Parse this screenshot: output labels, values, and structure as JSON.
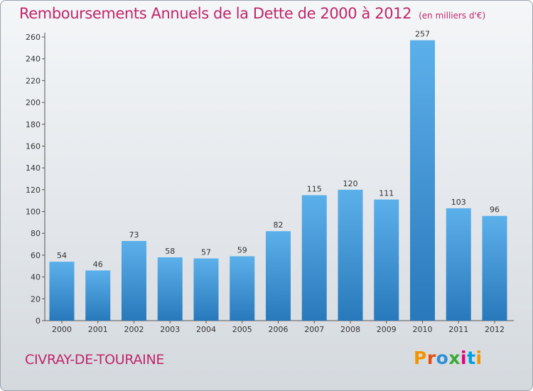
{
  "title": "Remboursements Annuels de la Dette de 2000 à 2012",
  "unit_note": "(en milliers d'€)",
  "commune": "CIVRAY-DE-TOURAINE",
  "logo": {
    "text": "Proxiti",
    "colors": [
      "#f29400",
      "#e84e0f",
      "#2f8fd8",
      "#3aa935",
      "#e6007e",
      "#009fe3"
    ]
  },
  "colors": {
    "title": "#c0266a",
    "bar_light": "#5aaee8",
    "bar_dark": "#2a7fc0"
  },
  "chart_data": {
    "type": "bar",
    "title": "Remboursements Annuels de la Dette de 2000 à 2012",
    "categories": [
      "2000",
      "2001",
      "2002",
      "2003",
      "2004",
      "2005",
      "2006",
      "2007",
      "2008",
      "2009",
      "2010",
      "2011",
      "2012"
    ],
    "values": [
      54,
      46,
      73,
      58,
      57,
      59,
      82,
      115,
      120,
      111,
      257,
      103,
      96
    ],
    "ylim": [
      0,
      260
    ],
    "yticks": [
      0,
      20,
      40,
      60,
      80,
      100,
      120,
      140,
      160,
      180,
      200,
      220,
      240,
      260
    ],
    "grid": false,
    "data_labels": true
  }
}
